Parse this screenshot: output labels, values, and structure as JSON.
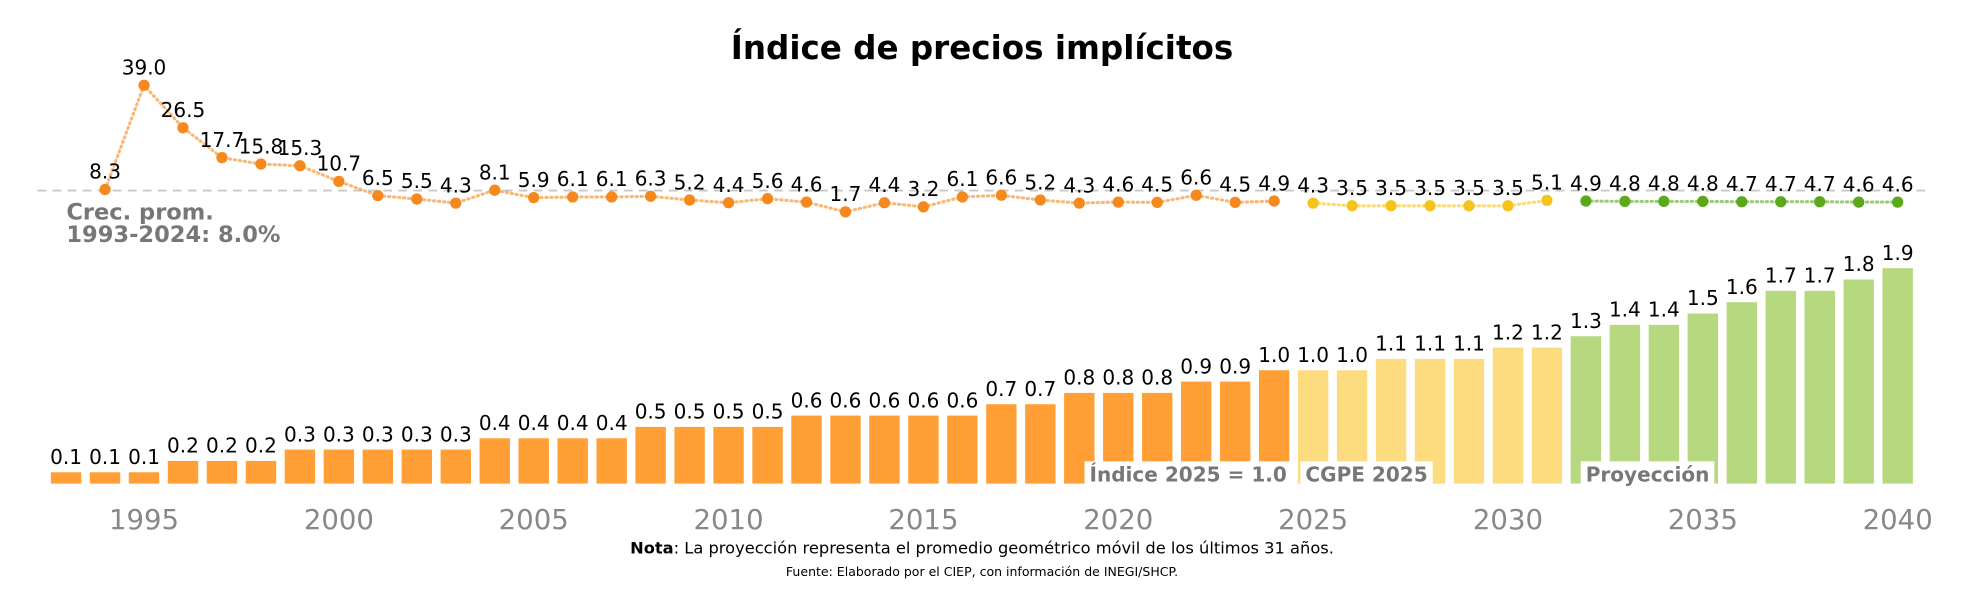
{
  "chart_data": {
    "type": "bar",
    "title": "Índice de precios implícitos",
    "x": [
      1993,
      1994,
      1995,
      1996,
      1997,
      1998,
      1999,
      2000,
      2001,
      2002,
      2003,
      2004,
      2005,
      2006,
      2007,
      2008,
      2009,
      2010,
      2011,
      2012,
      2013,
      2014,
      2015,
      2016,
      2017,
      2018,
      2019,
      2020,
      2021,
      2022,
      2023,
      2024,
      2025,
      2026,
      2027,
      2028,
      2029,
      2030,
      2031,
      2032,
      2033,
      2034,
      2035,
      2036,
      2037,
      2038,
      2039,
      2040
    ],
    "xlim": [
      1992.5,
      2040.5
    ],
    "xticks": [
      1995,
      2000,
      2005,
      2010,
      2015,
      2020,
      2025,
      2030,
      2035,
      2040
    ],
    "ylim": [
      0,
      1.9
    ],
    "series": [
      {
        "name": "Índice 2025 = 1.0",
        "color": "#ff9f35",
        "values": [
          0.1,
          0.1,
          0.1,
          0.2,
          0.2,
          0.2,
          0.3,
          0.3,
          0.3,
          0.3,
          0.3,
          0.4,
          0.4,
          0.4,
          0.4,
          0.5,
          0.5,
          0.5,
          0.5,
          0.6,
          0.6,
          0.6,
          0.6,
          0.6,
          0.7,
          0.7,
          0.8,
          0.8,
          0.8,
          0.9,
          0.9,
          1.0,
          null,
          null,
          null,
          null,
          null,
          null,
          null,
          null,
          null,
          null,
          null,
          null,
          null,
          null,
          null,
          null
        ],
        "value_labels": [
          "0.1",
          "0.1",
          "0.1",
          "0.2",
          "0.2",
          "0.2",
          "0.3",
          "0.3",
          "0.3",
          "0.3",
          "0.3",
          "0.4",
          "0.4",
          "0.4",
          "0.4",
          "0.5",
          "0.5",
          "0.5",
          "0.5",
          "0.6",
          "0.6",
          "0.6",
          "0.6",
          "0.6",
          "0.7",
          "0.7",
          "0.8",
          "0.8",
          "0.8",
          "0.9",
          "0.9",
          "1.0",
          null,
          null,
          null,
          null,
          null,
          null,
          null,
          null,
          null,
          null,
          null,
          null,
          null,
          null,
          null,
          null
        ]
      },
      {
        "name": "CGPE 2025",
        "color": "#fddc80",
        "values": [
          null,
          null,
          null,
          null,
          null,
          null,
          null,
          null,
          null,
          null,
          null,
          null,
          null,
          null,
          null,
          null,
          null,
          null,
          null,
          null,
          null,
          null,
          null,
          null,
          null,
          null,
          null,
          null,
          null,
          null,
          null,
          null,
          1.0,
          1.0,
          1.1,
          1.1,
          1.1,
          1.2,
          1.2,
          null,
          null,
          null,
          null,
          null,
          null,
          null,
          null,
          null
        ],
        "value_labels": [
          null,
          null,
          null,
          null,
          null,
          null,
          null,
          null,
          null,
          null,
          null,
          null,
          null,
          null,
          null,
          null,
          null,
          null,
          null,
          null,
          null,
          null,
          null,
          null,
          null,
          null,
          null,
          null,
          null,
          null,
          null,
          null,
          "1.0",
          "1.0",
          "1.1",
          "1.1",
          "1.1",
          "1.2",
          "1.2",
          null,
          null,
          null,
          null,
          null,
          null,
          null,
          null,
          null
        ]
      },
      {
        "name": "Proyección",
        "color": "#b6d87e",
        "values": [
          null,
          null,
          null,
          null,
          null,
          null,
          null,
          null,
          null,
          null,
          null,
          null,
          null,
          null,
          null,
          null,
          null,
          null,
          null,
          null,
          null,
          null,
          null,
          null,
          null,
          null,
          null,
          null,
          null,
          null,
          null,
          null,
          null,
          null,
          null,
          null,
          null,
          null,
          null,
          1.3,
          1.4,
          1.4,
          1.5,
          1.6,
          1.7,
          1.7,
          1.8,
          1.9
        ],
        "value_labels": [
          null,
          null,
          null,
          null,
          null,
          null,
          null,
          null,
          null,
          null,
          null,
          null,
          null,
          null,
          null,
          null,
          null,
          null,
          null,
          null,
          null,
          null,
          null,
          null,
          null,
          null,
          null,
          null,
          null,
          null,
          null,
          null,
          null,
          null,
          null,
          null,
          null,
          null,
          null,
          "1.3",
          "1.4",
          "1.4",
          "1.5",
          "1.6",
          "1.7",
          "1.7",
          "1.8",
          "1.9"
        ]
      }
    ],
    "growth": {
      "type": "line",
      "ylim": [
        0,
        39
      ],
      "average": 8.0,
      "average_label": [
        "Crec. prom.",
        "1993-2024: 8.0%"
      ],
      "series": [
        {
          "color": "#f5891e",
          "values": [
            null,
            8.3,
            39.0,
            26.5,
            17.7,
            15.8,
            15.3,
            10.7,
            6.5,
            5.5,
            4.3,
            8.1,
            5.9,
            6.1,
            6.1,
            6.3,
            5.2,
            4.4,
            5.6,
            4.6,
            1.7,
            4.4,
            3.2,
            6.1,
            6.6,
            5.2,
            4.3,
            4.6,
            4.5,
            6.6,
            4.5,
            4.9,
            null,
            null,
            null,
            null,
            null,
            null,
            null,
            null,
            null,
            null,
            null,
            null,
            null,
            null,
            null,
            null
          ],
          "value_labels": [
            null,
            "8.3",
            "39.0",
            "26.5",
            "17.7",
            "15.8",
            "15.3",
            "10.7",
            "6.5",
            "5.5",
            "4.3",
            "8.1",
            "5.9",
            "6.1",
            "6.1",
            "6.3",
            "5.2",
            "4.4",
            "5.6",
            "4.6",
            "1.7",
            "4.4",
            "3.2",
            "6.1",
            "6.6",
            "5.2",
            "4.3",
            "4.6",
            "4.5",
            "6.6",
            "4.5",
            "4.9",
            null,
            null,
            null,
            null,
            null,
            null,
            null,
            null,
            null,
            null,
            null,
            null,
            null,
            null,
            null,
            null
          ]
        },
        {
          "color": "#f6c21c",
          "values": [
            null,
            null,
            null,
            null,
            null,
            null,
            null,
            null,
            null,
            null,
            null,
            null,
            null,
            null,
            null,
            null,
            null,
            null,
            null,
            null,
            null,
            null,
            null,
            null,
            null,
            null,
            null,
            null,
            null,
            null,
            null,
            null,
            4.3,
            3.5,
            3.5,
            3.5,
            3.5,
            3.5,
            5.1,
            null,
            null,
            null,
            null,
            null,
            null,
            null,
            null,
            null
          ],
          "value_labels": [
            null,
            null,
            null,
            null,
            null,
            null,
            null,
            null,
            null,
            null,
            null,
            null,
            null,
            null,
            null,
            null,
            null,
            null,
            null,
            null,
            null,
            null,
            null,
            null,
            null,
            null,
            null,
            null,
            null,
            null,
            null,
            null,
            "4.3",
            "3.5",
            "3.5",
            "3.5",
            "3.5",
            "3.5",
            "5.1",
            null,
            null,
            null,
            null,
            null,
            null,
            null,
            null,
            null
          ]
        },
        {
          "color": "#5ba81b",
          "values": [
            null,
            null,
            null,
            null,
            null,
            null,
            null,
            null,
            null,
            null,
            null,
            null,
            null,
            null,
            null,
            null,
            null,
            null,
            null,
            null,
            null,
            null,
            null,
            null,
            null,
            null,
            null,
            null,
            null,
            null,
            null,
            null,
            null,
            null,
            null,
            null,
            null,
            null,
            null,
            4.9,
            4.8,
            4.8,
            4.8,
            4.7,
            4.7,
            4.7,
            4.6,
            4.6
          ],
          "value_labels": [
            null,
            null,
            null,
            null,
            null,
            null,
            null,
            null,
            null,
            null,
            null,
            null,
            null,
            null,
            null,
            null,
            null,
            null,
            null,
            null,
            null,
            null,
            null,
            null,
            null,
            null,
            null,
            null,
            null,
            null,
            null,
            null,
            null,
            null,
            null,
            null,
            null,
            null,
            null,
            "4.9",
            "4.8",
            "4.8",
            "4.8",
            "4.7",
            "4.7",
            "4.7",
            "4.6",
            "4.6"
          ]
        }
      ]
    },
    "note_label": "Nota",
    "note": ": La proyección representa el promedio geométrico móvil de los últimos 31 años.",
    "source": "Fuente: Elaborado por el CIEP, con información de INEGI/SHCP."
  }
}
